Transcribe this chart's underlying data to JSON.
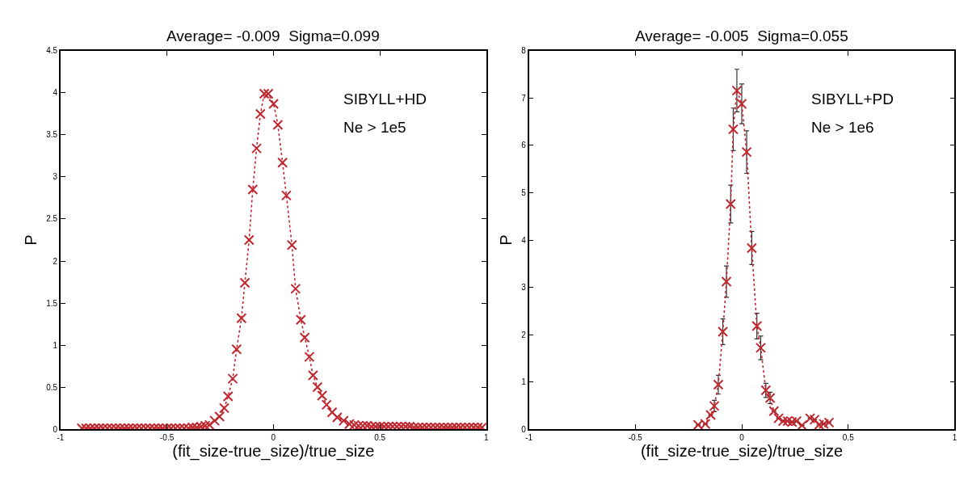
{
  "chart_data": [
    {
      "type": "line",
      "title": "Average= -0.009  Sigma=0.099",
      "xlabel": "(fit_size-true_size)/true_size",
      "ylabel": "P",
      "annotations": [
        "SIBYLL+HD",
        "Ne > 1e5"
      ],
      "xlim": [
        -1,
        1
      ],
      "xticks": [
        -1,
        -0.5,
        0,
        0.5,
        1
      ],
      "ylim": [
        0,
        4.5
      ],
      "yticks": [
        0,
        0.5,
        1,
        1.5,
        2,
        2.5,
        3,
        3.5,
        4,
        4.5
      ],
      "marker": "cross",
      "line_style": "dotted",
      "series": [
        {
          "color": "#c0262e",
          "x": [
            -0.9,
            -0.88,
            -0.86,
            -0.84,
            -0.82,
            -0.8,
            -0.78,
            -0.76,
            -0.74,
            -0.72,
            -0.7,
            -0.68,
            -0.66,
            -0.64,
            -0.62,
            -0.6,
            -0.58,
            -0.56,
            -0.54,
            -0.52,
            -0.5,
            -0.48,
            -0.46,
            -0.44,
            -0.42,
            -0.4,
            -0.38,
            -0.36,
            -0.34,
            -0.32,
            -0.3,
            -0.276,
            -0.253,
            -0.231,
            -0.213,
            -0.191,
            -0.173,
            -0.15,
            -0.134,
            -0.114,
            -0.097,
            -0.079,
            -0.061,
            -0.043,
            -0.024,
            0.001,
            0.021,
            0.043,
            0.061,
            0.087,
            0.104,
            0.129,
            0.147,
            0.169,
            0.186,
            0.207,
            0.229,
            0.25,
            0.276,
            0.3,
            0.33,
            0.357,
            0.38,
            0.4,
            0.42,
            0.44,
            0.46,
            0.48,
            0.5,
            0.52,
            0.54,
            0.56,
            0.58,
            0.6,
            0.62,
            0.64,
            0.66,
            0.68,
            0.7,
            0.72,
            0.74,
            0.76,
            0.78,
            0.8,
            0.82,
            0.84,
            0.86,
            0.88,
            0.9,
            0.92,
            0.94,
            0.96,
            0.98
          ],
          "values": [
            0.01,
            0.01,
            0.01,
            0.01,
            0.01,
            0.01,
            0.01,
            0.01,
            0.01,
            0.01,
            0.01,
            0.01,
            0.01,
            0.01,
            0.01,
            0.01,
            0.01,
            0.01,
            0.01,
            0.01,
            0.01,
            0.01,
            0.01,
            0.01,
            0.01,
            0.01,
            0.02,
            0.02,
            0.03,
            0.04,
            0.05,
            0.1,
            0.15,
            0.25,
            0.39,
            0.6,
            0.95,
            1.32,
            1.74,
            2.25,
            2.85,
            3.34,
            3.75,
            3.99,
            3.99,
            3.87,
            3.62,
            3.17,
            2.78,
            2.19,
            1.67,
            1.3,
            1.09,
            0.86,
            0.64,
            0.5,
            0.4,
            0.29,
            0.2,
            0.14,
            0.1,
            0.06,
            0.05,
            0.04,
            0.04,
            0.04,
            0.03,
            0.03,
            0.03,
            0.03,
            0.03,
            0.03,
            0.03,
            0.03,
            0.03,
            0.03,
            0.02,
            0.02,
            0.02,
            0.02,
            0.02,
            0.02,
            0.02,
            0.02,
            0.02,
            0.02,
            0.02,
            0.02,
            0.02,
            0.02,
            0.02,
            0.02,
            0.02
          ]
        }
      ]
    },
    {
      "type": "line",
      "title": "Average= -0.005  Sigma=0.055",
      "xlabel": "(fit_size-true_size)/true_size",
      "ylabel": "P",
      "annotations": [
        "SIBYLL+PD",
        "Ne > 1e6"
      ],
      "xlim": [
        -1,
        1
      ],
      "xticks": [
        -1,
        -0.5,
        0,
        0.5,
        1
      ],
      "ylim": [
        0,
        8
      ],
      "yticks": [
        0,
        1,
        2,
        3,
        4,
        5,
        6,
        7,
        8
      ],
      "marker": "cross",
      "line_style": "dotted",
      "series": [
        {
          "color": "#c0262e",
          "x": [
            -0.205,
            -0.171,
            -0.146,
            -0.129,
            -0.11,
            -0.089,
            -0.072,
            -0.052,
            -0.04,
            -0.023,
            0.0,
            0.023,
            0.047,
            0.071,
            0.089,
            0.113,
            0.133,
            0.151,
            0.173,
            0.194,
            0.215,
            0.236,
            0.257,
            0.283,
            0.321,
            0.342,
            0.363,
            0.385,
            0.41
          ],
          "values": [
            0.09,
            0.11,
            0.3,
            0.49,
            0.94,
            2.06,
            3.12,
            4.76,
            6.34,
            7.16,
            6.88,
            5.86,
            3.83,
            2.18,
            1.72,
            0.82,
            0.66,
            0.38,
            0.23,
            0.17,
            0.17,
            0.15,
            0.17,
            0.08,
            0.23,
            0.2,
            0.09,
            0.11,
            0.14
          ],
          "errors": [
            null,
            null,
            null,
            0.12,
            0.2,
            0.27,
            0.33,
            0.4,
            0.45,
            0.45,
            0.42,
            0.45,
            0.35,
            0.27,
            0.25,
            0.15,
            0.12,
            null,
            null,
            null,
            null,
            null,
            null,
            null,
            null,
            null,
            null,
            null,
            null
          ]
        }
      ]
    }
  ]
}
